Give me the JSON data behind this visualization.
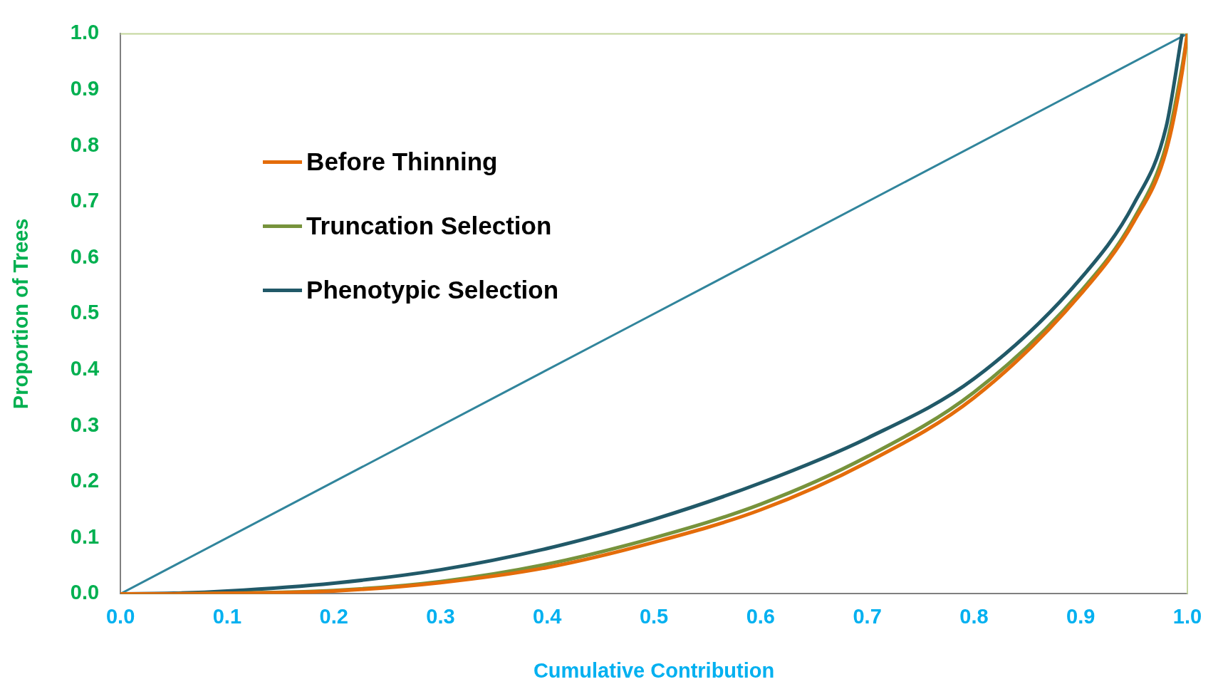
{
  "chart_data": {
    "type": "line",
    "xlabel": "Cumulative Contribution",
    "ylabel": "Proportion of Trees",
    "x": [
      0,
      0.05,
      0.1,
      0.2,
      0.3,
      0.4,
      0.5,
      0.6,
      0.7,
      0.8,
      0.9,
      0.95,
      0.98,
      0.995,
      1
    ],
    "series": [
      {
        "name": "Before Thinning",
        "color": "#e46c0a",
        "values": [
          0,
          0,
          0.001,
          0.005,
          0.02,
          0.047,
          0.092,
          0.15,
          0.235,
          0.35,
          0.535,
          0.665,
          0.79,
          0.93,
          1
        ]
      },
      {
        "name": "Truncation Selection",
        "color": "#77933c",
        "values": [
          0,
          0,
          0.001,
          0.006,
          0.022,
          0.053,
          0.1,
          0.16,
          0.245,
          0.36,
          0.54,
          0.67,
          0.8,
          0.94,
          1
        ]
      },
      {
        "name": "Phenotypic Selection",
        "color": "#215968",
        "values": [
          0,
          0.001,
          0.005,
          0.019,
          0.043,
          0.081,
          0.133,
          0.198,
          0.278,
          0.384,
          0.563,
          0.697,
          0.833,
          1,
          null
        ]
      },
      {
        "color": "#31859c",
        "x": [
          0,
          1
        ],
        "values": [
          0,
          1
        ]
      }
    ],
    "xlim": [
      0,
      1
    ],
    "ylim": [
      0,
      1
    ],
    "xticks": [
      {
        "value": 0,
        "label": "0.0"
      },
      {
        "value": 0.1,
        "label": "0.1"
      },
      {
        "value": 0.2,
        "label": "0.2"
      },
      {
        "value": 0.3,
        "label": "0.3"
      },
      {
        "value": 0.4,
        "label": "0.4"
      },
      {
        "value": 0.5,
        "label": "0.5"
      },
      {
        "value": 0.6,
        "label": "0.6"
      },
      {
        "value": 0.7,
        "label": "0.7"
      },
      {
        "value": 0.8,
        "label": "0.8"
      },
      {
        "value": 0.9,
        "label": "0.9"
      },
      {
        "value": 1,
        "label": "1.0"
      }
    ],
    "yticks": [
      {
        "value": 0,
        "label": "0.0"
      },
      {
        "value": 0.1,
        "label": "0.1"
      },
      {
        "value": 0.2,
        "label": "0.2"
      },
      {
        "value": 0.3,
        "label": "0.3"
      },
      {
        "value": 0.4,
        "label": "0.4"
      },
      {
        "value": 0.5,
        "label": "0.5"
      },
      {
        "value": 0.6,
        "label": "0.6"
      },
      {
        "value": 0.7,
        "label": "0.7"
      },
      {
        "value": 0.8,
        "label": "0.8"
      },
      {
        "value": 0.9,
        "label": "0.9"
      },
      {
        "value": 1,
        "label": "1.0"
      }
    ],
    "grid": false,
    "legend": "top left",
    "marker": "none",
    "line_style": "solid"
  }
}
